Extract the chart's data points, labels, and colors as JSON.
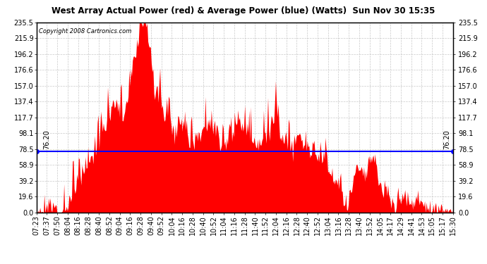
{
  "title": "West Array Actual Power (red) & Average Power (blue) (Watts)  Sun Nov 30 15:35",
  "copyright": "Copyright 2008 Cartronics.com",
  "avg_power": 76.2,
  "y_max": 235.5,
  "y_min": 0.0,
  "yticks": [
    0.0,
    19.6,
    39.2,
    58.9,
    78.5,
    98.1,
    117.7,
    137.4,
    157.0,
    176.6,
    196.2,
    215.9,
    235.5
  ],
  "background_color": "#ffffff",
  "plot_bg_color": "#ffffff",
  "bar_color": "#ff0000",
  "avg_line_color": "#0000ff",
  "grid_color": "#bbbbbb",
  "title_color": "#000000",
  "copyright_color": "#000000",
  "x_tick_labels": [
    "07:23",
    "07:37",
    "07:50",
    "08:04",
    "08:16",
    "08:28",
    "08:40",
    "08:52",
    "09:04",
    "09:16",
    "09:28",
    "09:40",
    "09:52",
    "10:04",
    "10:16",
    "10:28",
    "10:40",
    "10:52",
    "11:04",
    "11:16",
    "11:28",
    "11:40",
    "11:52",
    "12:04",
    "12:16",
    "12:28",
    "12:40",
    "12:52",
    "13:04",
    "13:16",
    "13:28",
    "13:40",
    "13:52",
    "14:05",
    "14:17",
    "14:29",
    "14:41",
    "14:53",
    "15:05",
    "15:17",
    "15:30"
  ],
  "n_points": 487,
  "seed": 12
}
